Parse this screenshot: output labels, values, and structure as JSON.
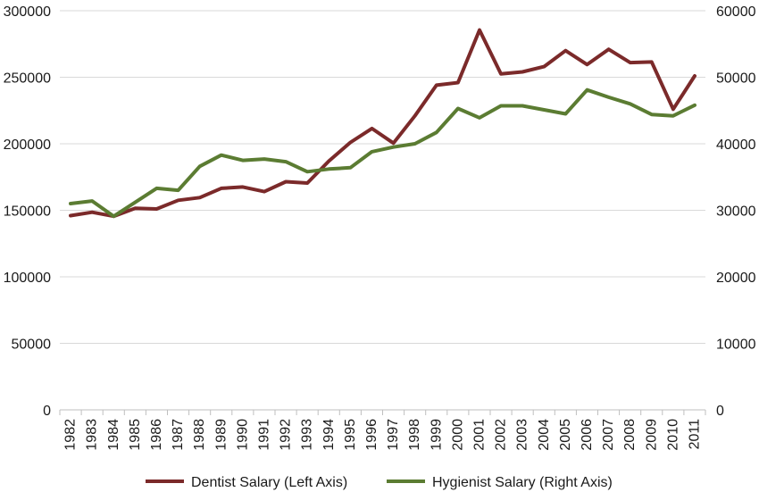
{
  "chart_data": {
    "type": "line",
    "title": "",
    "xlabel": "",
    "ylabel_left": "",
    "ylabel_right": "",
    "x": [
      "1982",
      "1983",
      "1984",
      "1985",
      "1986",
      "1987",
      "1988",
      "1989",
      "1990",
      "1991",
      "1992",
      "1993",
      "1994",
      "1995",
      "1996",
      "1997",
      "1998",
      "1999",
      "2000",
      "2001",
      "2002",
      "2003",
      "2004",
      "2005",
      "2006",
      "2007",
      "2008",
      "2009",
      "2010",
      "2011"
    ],
    "ylim_left": [
      0,
      300000
    ],
    "ylim_right": [
      0,
      60000
    ],
    "yticks_left": [
      "0",
      "50000",
      "100000",
      "150000",
      "200000",
      "250000",
      "300000"
    ],
    "yticks_right": [
      "0",
      "10000",
      "20000",
      "30000",
      "40000",
      "50000",
      "60000"
    ],
    "grid": true,
    "legend_position": "bottom",
    "series": [
      {
        "name": "Dentist Salary (Left Axis)",
        "axis": "left",
        "color": "#7b2a2a",
        "values": [
          146000,
          148500,
          145500,
          151500,
          151000,
          157500,
          159500,
          166500,
          167500,
          164000,
          171500,
          170500,
          187000,
          201000,
          211500,
          200500,
          221000,
          244000,
          246000,
          285500,
          252500,
          254000,
          258000,
          270000,
          259500,
          271000,
          261000,
          261500,
          226000,
          251000
        ]
      },
      {
        "name": "Hygienist Salary (Right Axis)",
        "axis": "right",
        "color": "#5b7c32",
        "values": [
          31000,
          31400,
          29100,
          31200,
          33300,
          33000,
          36600,
          38300,
          37500,
          37700,
          37300,
          35800,
          36200,
          36400,
          38800,
          39500,
          40000,
          41700,
          45300,
          43900,
          45700,
          45700,
          45100,
          44500,
          48100,
          47000,
          46000,
          44400,
          44200,
          45800
        ]
      }
    ]
  }
}
